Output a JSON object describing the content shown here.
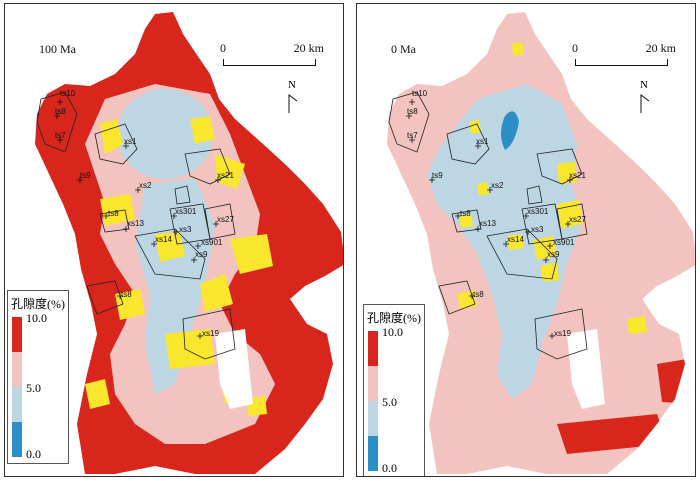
{
  "panels": [
    {
      "time": "100 Ma",
      "scale": {
        "zero": "0",
        "max": "20 km"
      },
      "north": "N",
      "legend": {
        "title": "孔隙度(%)",
        "ticks": [
          "10.0",
          "5.0",
          "0.0"
        ]
      }
    },
    {
      "time": "0 Ma",
      "scale": {
        "zero": "0",
        "max": "20 km"
      },
      "north": "N",
      "legend": {
        "title": "孔隙度(%)",
        "ticks": [
          "10.0",
          "5.0",
          "0.0"
        ]
      }
    }
  ],
  "wells": [
    "ts10",
    "ts8",
    "ts7",
    "xs1",
    "ts9",
    "xs2",
    "xs21",
    "ts8",
    "xs13",
    "xs301",
    "xs27",
    "xs3",
    "xs14",
    "xs901",
    "xs9",
    "ts8",
    "xs19"
  ],
  "colors": {
    "high": "#d9261c",
    "mid_high": "#f3c4bf",
    "mid_low": "#bcd6e4",
    "low": "#2b8fc6",
    "yellow": "#fbe62e",
    "outline": "#222222"
  }
}
